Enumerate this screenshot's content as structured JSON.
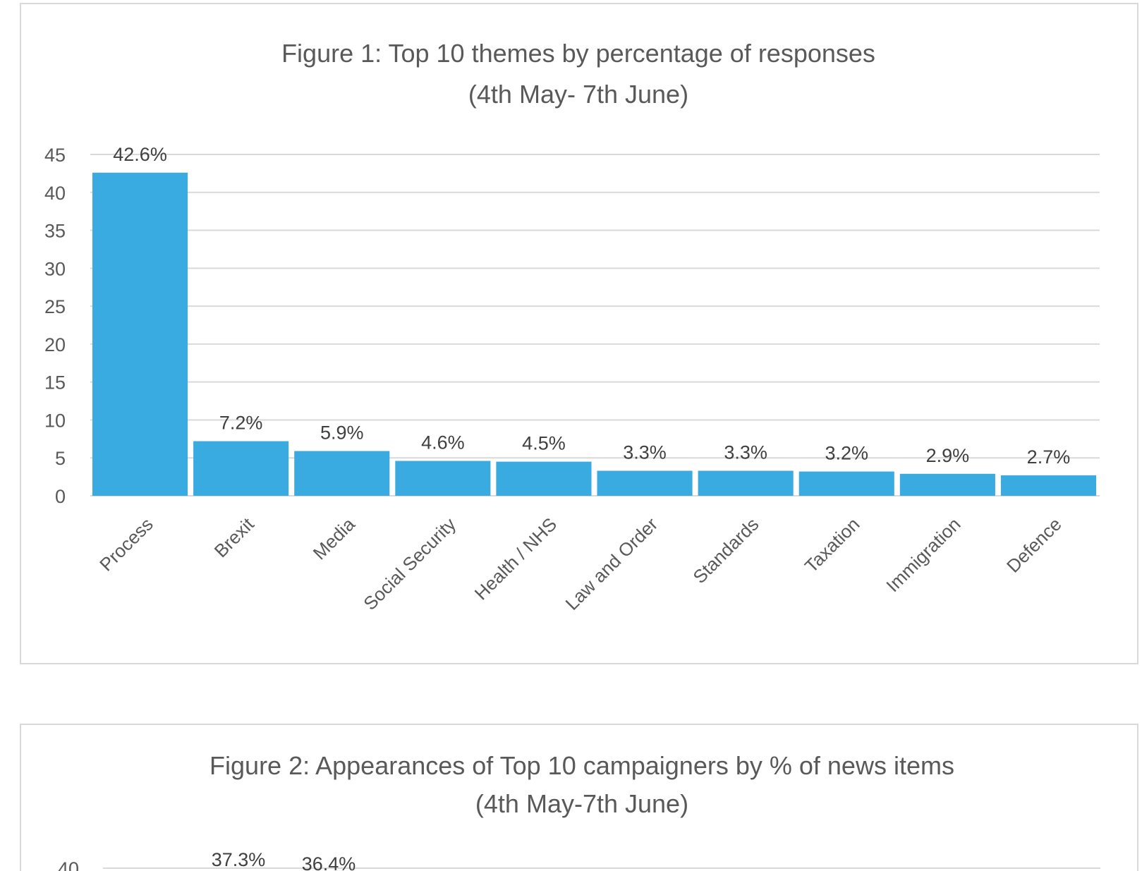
{
  "chart_data": [
    {
      "type": "bar",
      "title": "Figure 1: Top 10 themes by percentage of responses",
      "subtitle": "(4th May- 7th June)",
      "categories": [
        "Process",
        "Brexit",
        "Media",
        "Social Security",
        "Health / NHS",
        "Law and Order",
        "Standards",
        "Taxation",
        "Immigration",
        "Defence"
      ],
      "values": [
        42.6,
        7.2,
        5.9,
        4.6,
        4.5,
        3.3,
        3.3,
        3.2,
        2.9,
        2.7
      ],
      "data_labels": [
        "42.6%",
        "7.2%",
        "5.9%",
        "4.6%",
        "4.5%",
        "3.3%",
        "3.3%",
        "3.2%",
        "2.9%",
        "2.7%"
      ],
      "yticks": [
        "0",
        "5",
        "10",
        "15",
        "20",
        "25",
        "30",
        "35",
        "40",
        "45"
      ],
      "ylim": [
        0,
        45
      ],
      "grid": true,
      "bar_color": "#3aabe0"
    },
    {
      "type": "bar",
      "title": "Figure 2: Appearances of Top 10 campaigners by % of news items",
      "subtitle": "(4th May-7th June)",
      "values": [
        37.3,
        36.4
      ],
      "data_labels": [
        "37.3%",
        "36.4%"
      ],
      "yticks": [
        "40"
      ],
      "grid": true
    }
  ]
}
